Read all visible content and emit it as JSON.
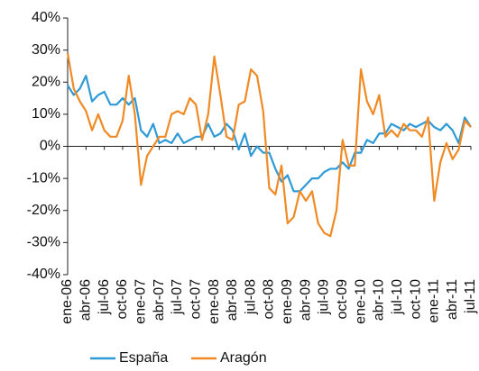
{
  "chart_data": {
    "type": "line",
    "categories": [
      "ene-06",
      null,
      null,
      "abr-06",
      null,
      null,
      "jul-06",
      null,
      null,
      "oct-06",
      null,
      null,
      "ene-07",
      null,
      null,
      "abr-07",
      null,
      null,
      "jul-07",
      null,
      null,
      "oct-07",
      null,
      null,
      "ene-08",
      null,
      null,
      "abr-08",
      null,
      null,
      "jul-08",
      null,
      null,
      "oct-08",
      null,
      null,
      "ene-09",
      null,
      null,
      "abr-09",
      null,
      null,
      "jul-09",
      null,
      null,
      "oct-09",
      null,
      null,
      "ene-10",
      null,
      null,
      "abr-10",
      null,
      null,
      "jul-10",
      null,
      null,
      "oct-10",
      null,
      null,
      "ene-11",
      null,
      null,
      "abr-11",
      null,
      null,
      "jul-11"
    ],
    "series": [
      {
        "name": "España",
        "color": "#2e9ad6",
        "values": [
          19,
          16,
          18,
          22,
          14,
          16,
          17,
          13,
          13,
          15,
          13,
          15,
          5,
          3,
          7,
          1,
          2,
          1,
          4,
          1,
          2,
          3,
          3,
          7,
          3,
          4,
          7,
          5,
          -1,
          4,
          -3,
          0,
          -2,
          -2,
          -7,
          -11,
          -9,
          -14,
          -14,
          -12,
          -10,
          -10,
          -8,
          -7,
          -7,
          -5,
          -7,
          -2,
          -2,
          2,
          1,
          4,
          4,
          7,
          6,
          5,
          7,
          6,
          7,
          8,
          6,
          5,
          7,
          5,
          1,
          9,
          6
        ]
      },
      {
        "name": "Aragón",
        "color": "#f08a24",
        "values": [
          29,
          18,
          14,
          11,
          5,
          10,
          5,
          3,
          3,
          8,
          22,
          10,
          -12,
          -3,
          0,
          3,
          3,
          10,
          11,
          10,
          15,
          13,
          2,
          10,
          28,
          16,
          3,
          2,
          13,
          14,
          24,
          22,
          11,
          -13,
          -15,
          -6,
          -24,
          -22,
          -14,
          -17,
          -14,
          -24,
          -27,
          -28,
          -20,
          2,
          -6,
          -6,
          24,
          14,
          10,
          16,
          3,
          5,
          3,
          7,
          5,
          5,
          3,
          9,
          -17,
          -5,
          1,
          -4,
          -1,
          8,
          6
        ]
      }
    ],
    "ylim": [
      -40,
      40
    ],
    "yticks": [
      {
        "value": -40,
        "label": "-40%"
      },
      {
        "value": -30,
        "label": "-30%"
      },
      {
        "value": -20,
        "label": "-20%"
      },
      {
        "value": -10,
        "label": "-10%"
      },
      {
        "value": 0,
        "label": "0%"
      },
      {
        "value": 10,
        "label": "10%"
      },
      {
        "value": 20,
        "label": "20%"
      },
      {
        "value": 30,
        "label": "30%"
      },
      {
        "value": 40,
        "label": "40%"
      }
    ],
    "legend": "bottom"
  }
}
